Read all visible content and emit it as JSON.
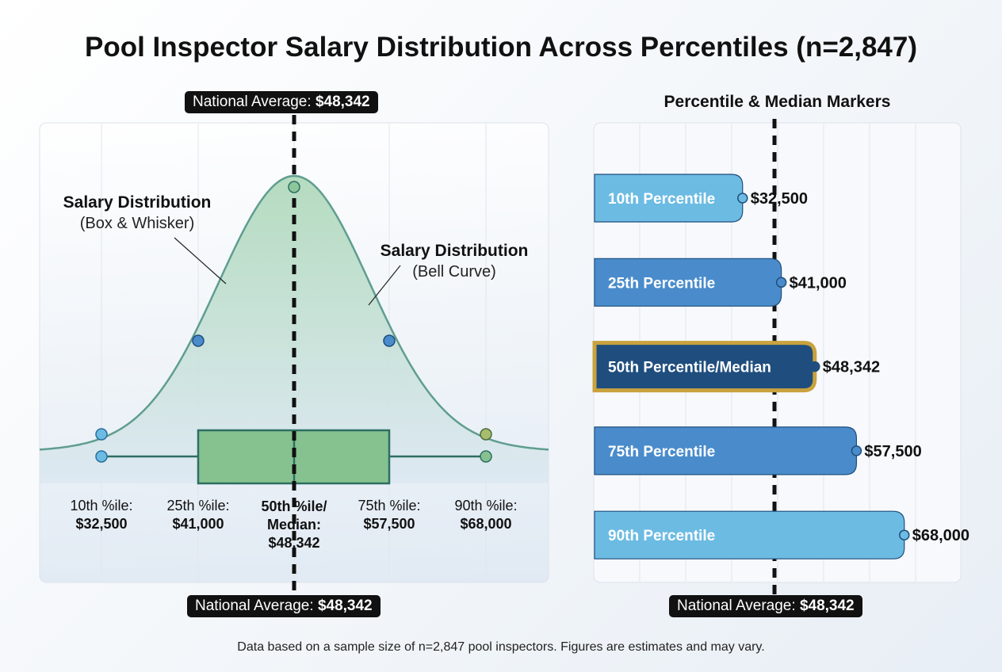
{
  "title": "Pool Inspector Salary Distribution Across Percentiles (n=2,847)",
  "footnote": "Data based on a sample size of n=2,847 pool inspectors. Figures are estimates and may vary.",
  "national_average": {
    "label": "National Average:",
    "value": "$48,342"
  },
  "colors": {
    "curve": "#5f9e8f",
    "box": "#86c28f",
    "box_edge": "#2e6e63",
    "bar_light": "#6cbbe3",
    "bar_mid": "#4a8ccb",
    "bar_dark": "#1f4e7e",
    "gold": "#c9a23e",
    "avg_line": "#111111"
  },
  "chart_data": [
    {
      "type": "box",
      "annotations": [
        {
          "title": "Salary Distribution",
          "subtitle": "(Box & Whisker)"
        },
        {
          "title": "Salary Distribution",
          "subtitle": "(Bell Curve)"
        }
      ],
      "stats": [
        {
          "label": "10th %ile:",
          "value": 32500,
          "text": "$32,500"
        },
        {
          "label": "25th %ile:",
          "value": 41000,
          "text": "$41,000"
        },
        {
          "label": "50th %ile/ Median:",
          "value": 48342,
          "text": "$48,342"
        },
        {
          "label": "75th %ile:",
          "value": 57500,
          "text": "$57,500"
        },
        {
          "label": "90th %ile:",
          "value": 68000,
          "text": "$68,000"
        }
      ],
      "national_average": 48342
    },
    {
      "type": "bar",
      "orientation": "horizontal",
      "title": "Percentile & Median Markers",
      "categories": [
        "10th Percentile",
        "25th Percentile",
        "50th Percentile/Median",
        "75th Percentile",
        "90th Percentile"
      ],
      "values": [
        32500,
        41000,
        48342,
        57500,
        68000
      ],
      "data_labels": [
        "$32,500",
        "$41,000",
        "$48,342",
        "$57,500",
        "$68,000"
      ],
      "highlighted": "50th Percentile/Median",
      "grid": true
    }
  ]
}
